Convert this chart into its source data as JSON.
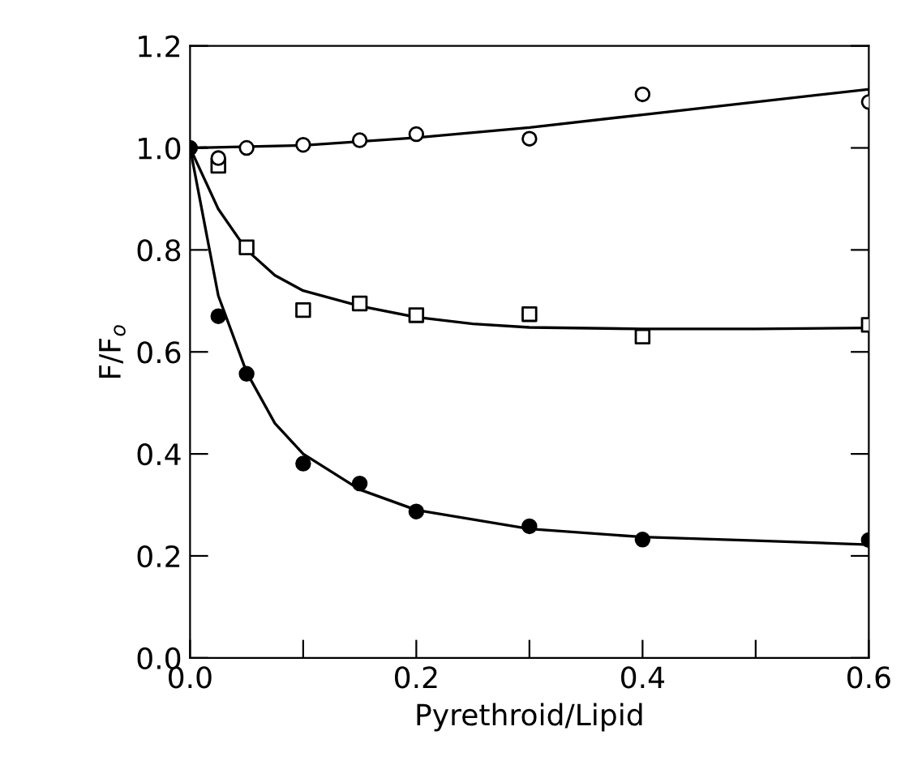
{
  "chart_data": {
    "type": "scatter",
    "xlabel": "Pyrethroid/Lipid",
    "ylabel": "F/F$_{o}$",
    "xlim": [
      0,
      0.6
    ],
    "ylim": [
      0,
      1.2
    ],
    "xticks": [
      {
        "value": 0,
        "label": "0.0"
      },
      {
        "value": 0.1,
        "label": null
      },
      0.2,
      {
        "value": 0.3,
        "label": null
      },
      0.4,
      {
        "value": 0.5,
        "label": null
      },
      0.6
    ],
    "yticks": [
      {
        "value": 0,
        "label": "0.0"
      },
      0.2,
      0.4,
      0.6,
      0.8,
      {
        "value": 1.0,
        "label": "1.0"
      },
      1.2
    ],
    "grid": false,
    "series": [
      {
        "marker": "circle",
        "color": "#ffffff",
        "x": [
          0.025,
          0.05,
          0.1,
          0.15,
          0.2,
          0.3,
          0.4,
          0.6
        ],
        "values": [
          0.98,
          1.0,
          1.006,
          1.015,
          1.027,
          1.018,
          1.105,
          1.09
        ]
      },
      {
        "marker": "square",
        "color": "#ffffff",
        "x": [
          0.025,
          0.05,
          0.1,
          0.15,
          0.2,
          0.3,
          0.4,
          0.6
        ],
        "values": [
          0.965,
          0.805,
          0.682,
          0.695,
          0.672,
          0.674,
          0.63,
          0.653
        ]
      },
      {
        "marker": "circle",
        "color": "#000000",
        "x": [
          0,
          0.025,
          0.05,
          0.1,
          0.15,
          0.2,
          0.3,
          0.4,
          0.6
        ],
        "values": [
          1.0,
          0.67,
          0.557,
          0.381,
          0.342,
          0.287,
          0.258,
          0.232,
          0.231
        ]
      },
      {
        "type": "line",
        "color": "#000000",
        "x": [
          0,
          0.1,
          0.2,
          0.3,
          0.4,
          0.5,
          0.6
        ],
        "values": [
          1.0,
          1.005,
          1.02,
          1.04,
          1.065,
          1.09,
          1.115
        ]
      },
      {
        "type": "line",
        "color": "#000000",
        "x": [
          0,
          0.025,
          0.05,
          0.075,
          0.1,
          0.15,
          0.2,
          0.25,
          0.3,
          0.4,
          0.5,
          0.6
        ],
        "values": [
          1.0,
          0.88,
          0.8,
          0.75,
          0.72,
          0.69,
          0.668,
          0.655,
          0.648,
          0.645,
          0.645,
          0.647
        ]
      },
      {
        "type": "line",
        "color": "#000000",
        "x": [
          0,
          0.025,
          0.05,
          0.075,
          0.1,
          0.15,
          0.2,
          0.3,
          0.4,
          0.5,
          0.6
        ],
        "values": [
          1.0,
          0.71,
          0.56,
          0.46,
          0.4,
          0.33,
          0.29,
          0.253,
          0.237,
          0.23,
          0.222
        ]
      }
    ]
  }
}
